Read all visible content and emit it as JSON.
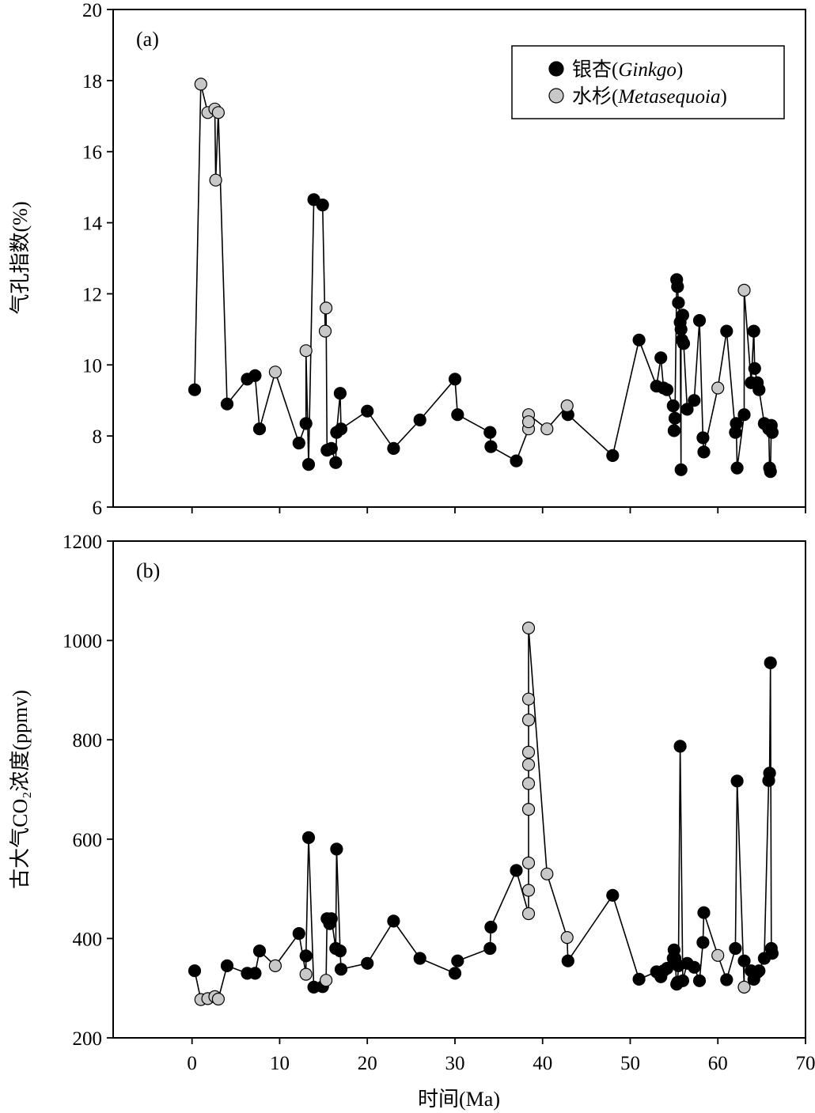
{
  "figure": {
    "xlabel": "时间(Ma)",
    "legend": {
      "ginkgo_prefix": "银杏(",
      "ginkgo_italic": "Ginkgo",
      "ginkgo_suffix": ")",
      "meta_prefix": "水杉(",
      "meta_italic": "Metasequoia",
      "meta_suffix": ")"
    },
    "colors": {
      "ginkgo": "#000000",
      "metasequoia": "#c8c8c8",
      "line": "#000000"
    }
  },
  "chart_data": [
    {
      "type": "scatter",
      "panel_label": "(a)",
      "ylabel": "气孔指数(%)",
      "xlim": [
        -9,
        70
      ],
      "ylim": [
        6,
        20
      ],
      "x_ticks": [
        0,
        10,
        20,
        30,
        40,
        50,
        60,
        70
      ],
      "y_ticks": [
        6,
        8,
        10,
        12,
        14,
        16,
        18,
        20
      ],
      "legend_position": "top-right",
      "connected_by_line": true,
      "series": [
        {
          "name": "银杏(Ginkgo)",
          "points": [
            [
              0.3,
              9.3
            ],
            [
              4.0,
              8.9
            ],
            [
              6.3,
              9.6
            ],
            [
              7.2,
              9.7
            ],
            [
              7.7,
              8.2
            ],
            [
              12.2,
              7.8
            ],
            [
              13.0,
              8.35
            ],
            [
              13.3,
              7.2
            ],
            [
              13.9,
              14.65
            ],
            [
              14.9,
              14.5
            ],
            [
              15.4,
              7.6
            ],
            [
              15.9,
              7.65
            ],
            [
              16.4,
              7.25
            ],
            [
              16.5,
              8.1
            ],
            [
              16.9,
              9.2
            ],
            [
              17.0,
              8.2
            ],
            [
              20.0,
              8.7
            ],
            [
              23.0,
              7.65
            ],
            [
              26.0,
              8.45
            ],
            [
              30.0,
              9.6
            ],
            [
              30.3,
              8.6
            ],
            [
              34.0,
              8.1
            ],
            [
              34.1,
              7.7
            ],
            [
              37.0,
              7.3
            ],
            [
              42.9,
              8.6
            ],
            [
              48.0,
              7.45
            ],
            [
              51.0,
              10.7
            ],
            [
              53.0,
              9.4
            ],
            [
              53.5,
              10.2
            ],
            [
              53.8,
              9.35
            ],
            [
              54.2,
              9.3
            ],
            [
              54.9,
              8.85
            ],
            [
              55.0,
              8.15
            ],
            [
              55.1,
              8.5
            ],
            [
              55.3,
              12.4
            ],
            [
              55.4,
              12.2
            ],
            [
              55.5,
              11.75
            ],
            [
              55.7,
              11.2
            ],
            [
              55.8,
              11.0
            ],
            [
              55.9,
              10.7
            ],
            [
              56.0,
              11.4
            ],
            [
              56.1,
              10.6
            ],
            [
              55.8,
              7.05
            ],
            [
              56.5,
              8.75
            ],
            [
              57.3,
              9.0
            ],
            [
              57.9,
              11.25
            ],
            [
              58.3,
              7.95
            ],
            [
              58.4,
              7.55
            ],
            [
              61.0,
              10.95
            ],
            [
              62.0,
              8.1
            ],
            [
              62.1,
              8.35
            ],
            [
              62.2,
              7.1
            ],
            [
              63.0,
              8.6
            ],
            [
              63.8,
              9.5
            ],
            [
              64.1,
              10.95
            ],
            [
              64.2,
              9.9
            ],
            [
              64.5,
              9.5
            ],
            [
              64.7,
              9.3
            ],
            [
              65.3,
              8.35
            ],
            [
              65.8,
              8.2
            ],
            [
              65.9,
              7.1
            ],
            [
              66.0,
              7.0
            ],
            [
              66.1,
              8.3
            ],
            [
              66.2,
              8.1
            ]
          ]
        },
        {
          "name": "水杉(Metasequoia)",
          "points": [
            [
              1.0,
              17.9
            ],
            [
              1.8,
              17.1
            ],
            [
              2.6,
              17.2
            ],
            [
              2.7,
              15.2
            ],
            [
              3.0,
              17.1
            ],
            [
              9.5,
              9.8
            ],
            [
              13.0,
              10.4
            ],
            [
              15.3,
              11.6
            ],
            [
              15.2,
              10.95
            ],
            [
              38.4,
              8.6
            ],
            [
              38.4,
              8.2
            ],
            [
              38.4,
              8.4
            ],
            [
              40.5,
              8.2
            ],
            [
              42.8,
              8.85
            ],
            [
              60.0,
              9.35
            ],
            [
              63.0,
              12.1
            ]
          ]
        }
      ]
    },
    {
      "type": "scatter",
      "panel_label": "(b)",
      "ylabel": "古大气CO₂浓度(ppmv)",
      "xlabel": "时间(Ma)",
      "xlim": [
        -9,
        70
      ],
      "ylim": [
        200,
        1200
      ],
      "x_ticks": [
        0,
        10,
        20,
        30,
        40,
        50,
        60,
        70
      ],
      "y_ticks": [
        200,
        400,
        600,
        800,
        1000,
        1200
      ],
      "connected_by_line": true,
      "series": [
        {
          "name": "银杏(Ginkgo)",
          "points": [
            [
              0.3,
              335
            ],
            [
              4.0,
              345
            ],
            [
              6.3,
              330
            ],
            [
              7.2,
              330
            ],
            [
              7.7,
              375
            ],
            [
              12.2,
              410
            ],
            [
              13.0,
              365
            ],
            [
              13.3,
              603
            ],
            [
              13.9,
              302
            ],
            [
              14.9,
              303
            ],
            [
              15.4,
              440
            ],
            [
              15.7,
              430
            ],
            [
              15.9,
              440
            ],
            [
              16.4,
              380
            ],
            [
              16.5,
              580
            ],
            [
              16.9,
              375
            ],
            [
              17.0,
              338
            ],
            [
              20.0,
              350
            ],
            [
              23.0,
              435
            ],
            [
              26.0,
              360
            ],
            [
              30.0,
              330
            ],
            [
              30.3,
              355
            ],
            [
              34.0,
              380
            ],
            [
              34.1,
              423
            ],
            [
              37.0,
              537
            ],
            [
              42.9,
              355
            ],
            [
              48.0,
              487
            ],
            [
              51.0,
              318
            ],
            [
              53.0,
              333
            ],
            [
              53.5,
              323
            ],
            [
              53.8,
              335
            ],
            [
              54.2,
              340
            ],
            [
              54.9,
              360
            ],
            [
              55.0,
              377
            ],
            [
              55.1,
              360
            ],
            [
              55.3,
              308
            ],
            [
              55.4,
              312
            ],
            [
              55.5,
              345
            ],
            [
              55.7,
              787
            ],
            [
              56.0,
              315
            ],
            [
              56.5,
              350
            ],
            [
              57.3,
              342
            ],
            [
              57.9,
              315
            ],
            [
              58.3,
              392
            ],
            [
              58.4,
              452
            ],
            [
              61.0,
              317
            ],
            [
              62.0,
              380
            ],
            [
              62.2,
              717
            ],
            [
              63.0,
              355
            ],
            [
              63.8,
              335
            ],
            [
              64.1,
              318
            ],
            [
              64.5,
              332
            ],
            [
              64.7,
              335
            ],
            [
              65.3,
              360
            ],
            [
              65.8,
              718
            ],
            [
              65.9,
              733
            ],
            [
              66.0,
              955
            ],
            [
              66.1,
              380
            ],
            [
              66.2,
              370
            ]
          ]
        },
        {
          "name": "水杉(Metasequoia)",
          "points": [
            [
              1.0,
              277
            ],
            [
              1.8,
              279
            ],
            [
              2.6,
              283
            ],
            [
              3.0,
              278
            ],
            [
              9.5,
              345
            ],
            [
              13.0,
              328
            ],
            [
              15.3,
              316
            ],
            [
              38.4,
              1025
            ],
            [
              38.4,
              882
            ],
            [
              38.4,
              840
            ],
            [
              38.4,
              775
            ],
            [
              38.4,
              750
            ],
            [
              38.4,
              712
            ],
            [
              38.4,
              660
            ],
            [
              38.4,
              552
            ],
            [
              38.4,
              497
            ],
            [
              38.4,
              450
            ],
            [
              40.5,
              530
            ],
            [
              42.8,
              402
            ],
            [
              60.0,
              366
            ],
            [
              63.0,
              302
            ]
          ]
        }
      ]
    }
  ]
}
